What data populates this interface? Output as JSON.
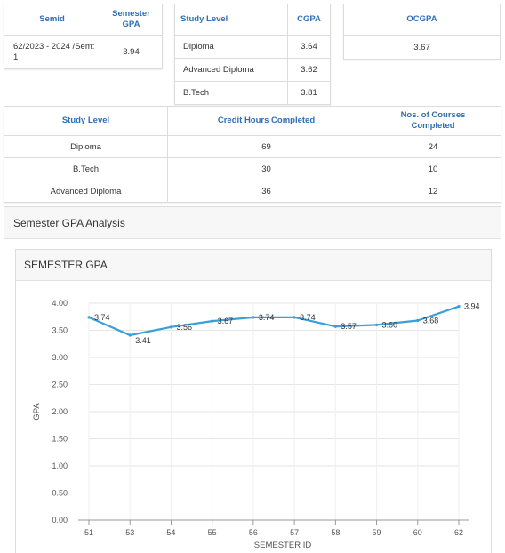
{
  "semester_table": {
    "headers": [
      "Semid",
      "Semester\nGPA"
    ],
    "row": [
      "62/2023 - 2024 /Sem:\n1",
      "3.94"
    ]
  },
  "cgpa_table": {
    "headers": [
      "Study Level",
      "CGPA"
    ],
    "rows": [
      [
        "Diploma",
        "3.64"
      ],
      [
        "Advanced Diploma",
        "3.62"
      ],
      [
        "B.Tech",
        "3.81"
      ]
    ]
  },
  "ocgpa_table": {
    "header": "OCGPA",
    "value": "3.67"
  },
  "credits_table": {
    "headers": [
      "Study Level",
      "Credit Hours Completed",
      "Nos. of Courses\nCompleted"
    ],
    "rows": [
      [
        "Diploma",
        "69",
        "24"
      ],
      [
        "B.Tech",
        "30",
        "10"
      ],
      [
        "Advanced Diploma",
        "36",
        "12"
      ]
    ]
  },
  "analysis_panel": {
    "title": "Semester GPA Analysis",
    "chart_title": "SEMESTER GPA"
  },
  "chart_data": {
    "type": "line",
    "title": "SEMESTER GPA",
    "xlabel": "SEMESTER ID",
    "ylabel": "GPA",
    "categories": [
      "51",
      "53",
      "54",
      "55",
      "56",
      "57",
      "58",
      "59",
      "60",
      "62"
    ],
    "values": [
      3.74,
      3.41,
      3.56,
      3.67,
      3.74,
      3.74,
      3.57,
      3.6,
      3.68,
      3.94
    ],
    "data_labels": [
      "3.74",
      "3.41",
      "3.56",
      "3.67",
      "3.74",
      "3.74",
      "3.57",
      "3.60",
      "3.68",
      "3.94"
    ],
    "ylim": [
      0,
      4
    ],
    "yticks": [
      "0.00",
      "0.50",
      "1.00",
      "1.50",
      "2.00",
      "2.50",
      "3.00",
      "3.50",
      "4.00"
    ],
    "line_color": "#3a9fd8",
    "grid": true,
    "legend": "none"
  }
}
